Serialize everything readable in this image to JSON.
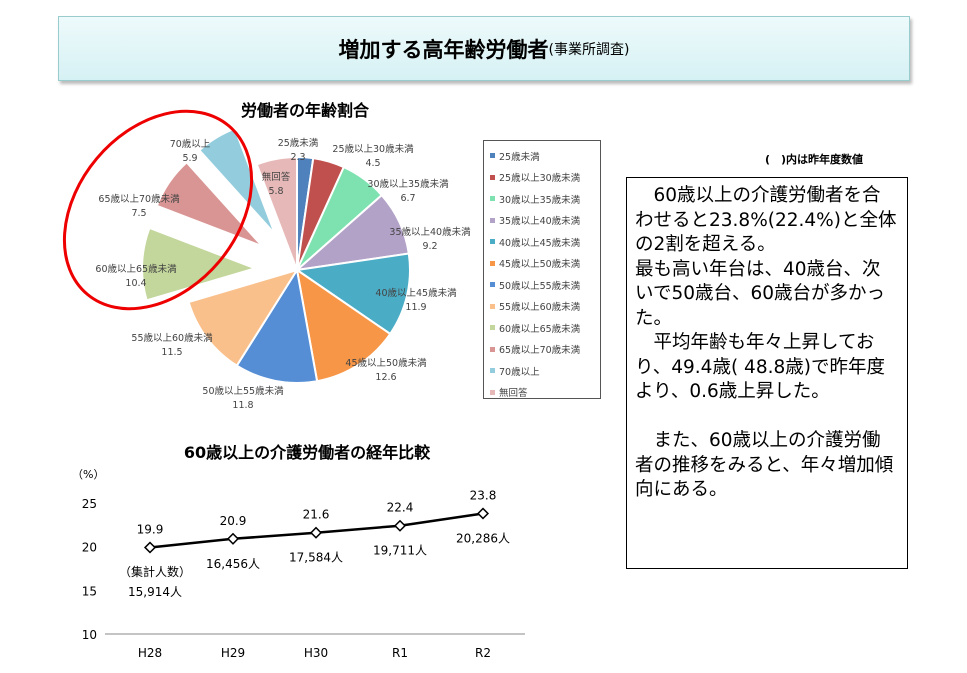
{
  "banner": {
    "title": "増加する高年齢労働者",
    "subtitle": "(事業所調査)"
  },
  "note": "(　)内は昨年度数値",
  "textbox": "　60歳以上の介護労働者を合わせると23.8%(22.4%)と全体の2割を超える。\n最も高い年台は、40歳台、次いで50歳台、60歳台が多かった。\n　平均年齢も年々上昇しており、49.4歳( 48.8歳)で昨年度より、0.6歳上昇した。\n\n　また、60歳以上の介護労働者の推移をみると、年々増加傾向にある。",
  "chart_data": [
    {
      "type": "pie",
      "title": "労働者の年齢割合",
      "legend": "right",
      "categories": [
        "25歳未満",
        "25歳以上30歳未満",
        "30歳以上35歳未満",
        "35歳以上40歳未満",
        "40歳以上45歳未満",
        "45歳以上50歳未満",
        "50歳以上55歳未満",
        "55歳以上60歳未満",
        "60歳以上65歳未満",
        "65歳以上70歳未満",
        "70歳以上",
        "無回答"
      ],
      "values": [
        2.3,
        4.5,
        6.7,
        9.2,
        11.9,
        12.6,
        11.8,
        11.5,
        10.4,
        7.5,
        5.9,
        5.8
      ],
      "colors": [
        "#4f81bd",
        "#c0504d",
        "#7ee2b0",
        "#b3a2c7",
        "#4bacc6",
        "#f79646",
        "#558ed5",
        "#f9c08b",
        "#c3d69b",
        "#d99594",
        "#93cddd",
        "#e6b9b8"
      ],
      "exploded": [
        false,
        false,
        false,
        false,
        false,
        false,
        false,
        false,
        true,
        true,
        true,
        false
      ]
    },
    {
      "type": "line",
      "title": "60歳以上の介護労働者の経年比較",
      "ylabel": "（%）",
      "categories": [
        "H28",
        "H29",
        "H30",
        "R1",
        "R2"
      ],
      "values": [
        19.9,
        20.9,
        21.6,
        22.4,
        23.8
      ],
      "counts": [
        "15,914人",
        "16,456人",
        "17,584人",
        "19,711人",
        "20,286人"
      ],
      "count_label": "（集計人数）",
      "ylim": [
        10,
        25
      ],
      "yticks": [
        10,
        15,
        20,
        25
      ]
    }
  ]
}
